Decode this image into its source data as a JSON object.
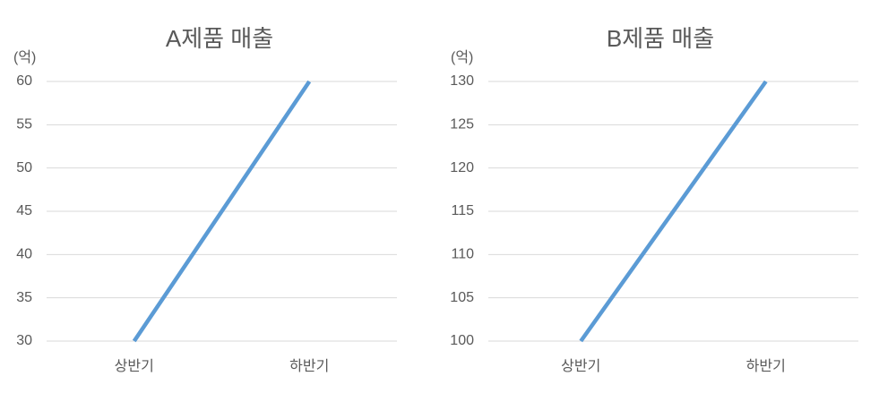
{
  "chart_data": [
    {
      "type": "line",
      "title": "A제품 매출",
      "y_label": "(억)",
      "categories": [
        "상반기",
        "하반기"
      ],
      "series": [
        {
          "name": "A제품",
          "color": "#5b9bd5",
          "values": [
            30,
            60
          ]
        }
      ],
      "ylim": [
        30,
        60
      ],
      "yticks": [
        30,
        35,
        40,
        45,
        50,
        55,
        60
      ],
      "grid": true
    },
    {
      "type": "line",
      "title": "B제품 매출",
      "y_label": "(억)",
      "categories": [
        "상반기",
        "하반기"
      ],
      "series": [
        {
          "name": "B제품",
          "color": "#5b9bd5",
          "values": [
            100,
            130
          ]
        }
      ],
      "ylim": [
        100,
        130
      ],
      "yticks": [
        100,
        105,
        110,
        115,
        120,
        125,
        130
      ],
      "grid": true
    }
  ]
}
